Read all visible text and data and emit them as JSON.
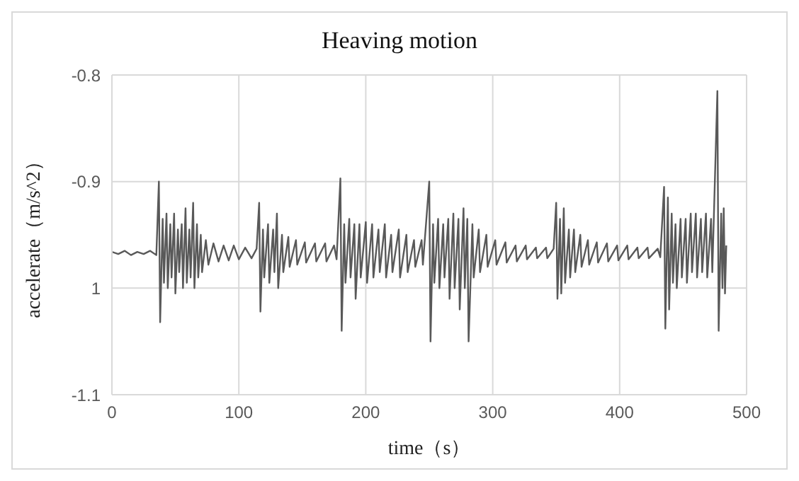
{
  "chart_data": {
    "type": "line",
    "title": "Heaving motion",
    "xlabel": "time（s）",
    "ylabel": "accelerate（m/s^2）",
    "xlim": [
      0,
      500
    ],
    "xticks": [
      0,
      100,
      200,
      300,
      400,
      500
    ],
    "ylim": [
      -1.1,
      -0.8
    ],
    "yticks": [
      -1.1,
      {
        "value": -1,
        "label": "1"
      },
      -0.9,
      -0.8
    ],
    "grid": true,
    "marker": "none",
    "line_style": "solid",
    "x": [
      0,
      5,
      10,
      15,
      20,
      25,
      30,
      35,
      37,
      38,
      40,
      41,
      43,
      44,
      46,
      47,
      49,
      50,
      52,
      53,
      55,
      56,
      58,
      59,
      61,
      62,
      64,
      65,
      67,
      68,
      70,
      71,
      74,
      76,
      80,
      84,
      88,
      92,
      96,
      100,
      105,
      110,
      114,
      116,
      117,
      119,
      120,
      123,
      124,
      127,
      128,
      130,
      131,
      134,
      135,
      139,
      140,
      145,
      146,
      152,
      153,
      160,
      161,
      168,
      169,
      175,
      177,
      180,
      181,
      183,
      184,
      187,
      188,
      191,
      192,
      195,
      196,
      200,
      201,
      205,
      206,
      210,
      211,
      215,
      216,
      220,
      221,
      226,
      227,
      232,
      233,
      238,
      239,
      244,
      245,
      250,
      251,
      253,
      254,
      257,
      258,
      261,
      262,
      265,
      266,
      269,
      270,
      273,
      274,
      277,
      278,
      280,
      281,
      284,
      285,
      289,
      290,
      295,
      296,
      302,
      303,
      310,
      311,
      318,
      319,
      326,
      327,
      334,
      335,
      342,
      343,
      348,
      350,
      351,
      353,
      354,
      356,
      357,
      360,
      361,
      364,
      365,
      369,
      370,
      375,
      376,
      382,
      383,
      390,
      391,
      398,
      399,
      406,
      407,
      414,
      415,
      422,
      423,
      430,
      432,
      435,
      436,
      438,
      439,
      441,
      442,
      444,
      445,
      448,
      449,
      452,
      453,
      456,
      457,
      460,
      461,
      464,
      465,
      468,
      469,
      472,
      473,
      477,
      478,
      480,
      481,
      482,
      483,
      484
    ],
    "series": [
      {
        "color": "#595959",
        "values": [
          -0.966,
          -0.968,
          -0.965,
          -0.969,
          -0.966,
          -0.968,
          -0.965,
          -0.969,
          -0.9,
          -1.032,
          -0.935,
          -0.995,
          -0.93,
          -1.0,
          -0.94,
          -0.99,
          -0.93,
          -1.005,
          -0.945,
          -0.985,
          -0.94,
          -1.0,
          -0.925,
          -0.995,
          -0.945,
          -0.99,
          -0.92,
          -1.0,
          -0.94,
          -0.99,
          -0.95,
          -0.985,
          -0.955,
          -0.978,
          -0.958,
          -0.975,
          -0.96,
          -0.974,
          -0.96,
          -0.973,
          -0.962,
          -0.972,
          -0.963,
          -0.92,
          -1.022,
          -0.945,
          -0.99,
          -0.94,
          -0.995,
          -0.945,
          -0.985,
          -0.93,
          -1.0,
          -0.95,
          -0.985,
          -0.952,
          -0.98,
          -0.955,
          -0.978,
          -0.957,
          -0.976,
          -0.958,
          -0.975,
          -0.958,
          -0.975,
          -0.96,
          -0.973,
          -0.897,
          -1.04,
          -0.94,
          -0.995,
          -0.935,
          -0.99,
          -0.94,
          -1.01,
          -0.94,
          -0.99,
          -0.938,
          -0.995,
          -0.94,
          -0.99,
          -0.945,
          -0.985,
          -0.94,
          -0.99,
          -0.95,
          -0.985,
          -0.945,
          -0.99,
          -0.95,
          -0.985,
          -0.955,
          -0.98,
          -0.955,
          -0.978,
          -0.9,
          -1.05,
          -0.94,
          -0.995,
          -0.935,
          -1.0,
          -0.94,
          -0.99,
          -0.935,
          -1.01,
          -0.93,
          -1.0,
          -0.935,
          -1.02,
          -0.925,
          -1.0,
          -0.935,
          -1.05,
          -0.94,
          -0.99,
          -0.945,
          -0.985,
          -0.95,
          -0.98,
          -0.955,
          -0.978,
          -0.957,
          -0.976,
          -0.96,
          -0.975,
          -0.96,
          -0.973,
          -0.962,
          -0.972,
          -0.962,
          -0.972,
          -0.963,
          -0.92,
          -1.01,
          -0.935,
          -1.005,
          -0.925,
          -0.995,
          -0.945,
          -0.99,
          -0.945,
          -0.985,
          -0.95,
          -0.98,
          -0.955,
          -0.978,
          -0.957,
          -0.976,
          -0.958,
          -0.975,
          -0.96,
          -0.974,
          -0.96,
          -0.973,
          -0.962,
          -0.972,
          -0.962,
          -0.972,
          -0.963,
          -0.971,
          -0.905,
          -1.038,
          -0.915,
          -1.02,
          -0.93,
          -0.995,
          -0.94,
          -1.0,
          -0.935,
          -0.99,
          -0.935,
          -0.995,
          -0.93,
          -0.985,
          -0.93,
          -0.99,
          -0.935,
          -0.985,
          -0.93,
          -0.99,
          -0.935,
          -0.985,
          -0.815,
          -1.04,
          -0.93,
          -1.0,
          -0.925,
          -1.005,
          -0.96
        ]
      }
    ]
  }
}
